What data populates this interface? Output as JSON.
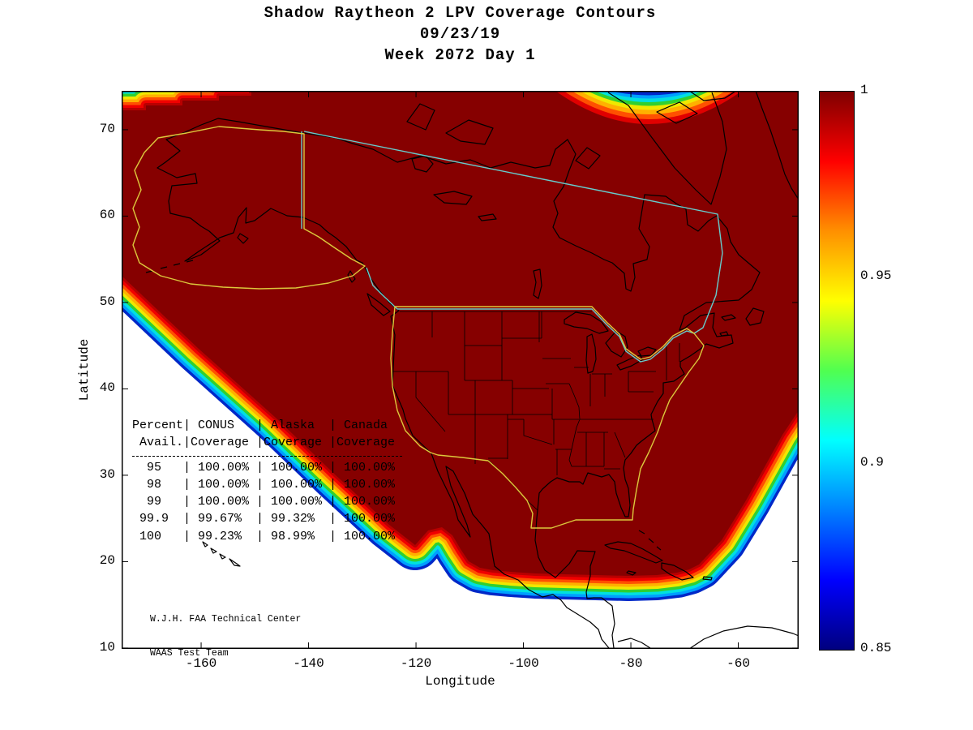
{
  "title": {
    "line1": "Shadow Raytheon 2 LPV Coverage Contours",
    "line2": "09/23/19",
    "line3": "Week 2072 Day 1"
  },
  "axes": {
    "xlabel": "Longitude",
    "ylabel": "Latitude",
    "xticks": [
      "-160",
      "-140",
      "-120",
      "-100",
      "-80",
      "-60"
    ],
    "yticks": [
      "70",
      "60",
      "50",
      "40",
      "30",
      "20",
      "10"
    ]
  },
  "colorbar": {
    "min": 0.85,
    "max": 1,
    "ticks": [
      "1",
      "0.95",
      "0.9",
      "0.85"
    ],
    "colormap": "jet"
  },
  "attribution": {
    "line1": "W.J.H. FAA Technical Center",
    "line2": "WAAS Test Team"
  },
  "chart_data": {
    "type": "heatmap",
    "subtype": "filled-contour-coverage-map",
    "title": "Shadow Raytheon 2 LPV Coverage Contours",
    "date": "09/23/19",
    "gps_week": 2072,
    "gps_day": 1,
    "xlabel": "Longitude",
    "ylabel": "Latitude",
    "xlim": [
      -175,
      -48
    ],
    "ylim": [
      10,
      74.5
    ],
    "xticks": [
      -160,
      -140,
      -120,
      -100,
      -80,
      -60
    ],
    "yticks": [
      10,
      20,
      30,
      40,
      50,
      60,
      70
    ],
    "colorbar_range": [
      0.85,
      1
    ],
    "colorbar_ticks": [
      0.85,
      0.9,
      0.95,
      1
    ],
    "colormap": "jet",
    "max_region_color": "#860000",
    "description": "LPV availability contours over North America. Value 1 (dark red) covers nearly the whole CONUS/Alaska/Canada service area; rainbow bands step down from 1 to 0.85 along the Pacific southwest edge, the southern Gulf/Caribbean edge, the Atlantic southeast edge, and a small low-coverage notch at the top north-Atlantic edge.",
    "coverage_table": {
      "headers_line1": [
        "Percent",
        "CONUS",
        "Alaska",
        "Canada"
      ],
      "headers_line2": [
        "Avail.",
        "Coverage",
        "Coverage",
        "Coverage"
      ],
      "rows": [
        [
          "95",
          "100.00%",
          "100.00%",
          "100.00%"
        ],
        [
          "98",
          "100.00%",
          "100.00%",
          "100.00%"
        ],
        [
          "99",
          "100.00%",
          "100.00%",
          "100.00%"
        ],
        [
          "99.9",
          "99.67%",
          "99.32%",
          "100.00%"
        ],
        [
          "100",
          "99.23%",
          "98.99%",
          "100.00%"
        ]
      ]
    }
  }
}
